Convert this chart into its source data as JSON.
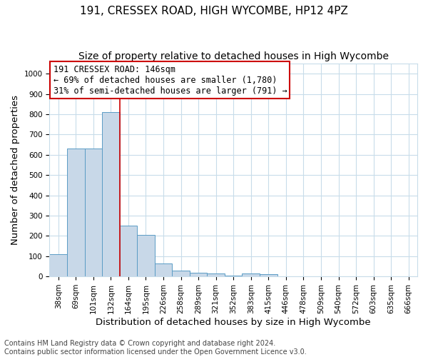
{
  "title": "191, CRESSEX ROAD, HIGH WYCOMBE, HP12 4PZ",
  "subtitle": "Size of property relative to detached houses in High Wycombe",
  "xlabel": "Distribution of detached houses by size in High Wycombe",
  "ylabel": "Number of detached properties",
  "footer_line1": "Contains HM Land Registry data © Crown copyright and database right 2024.",
  "footer_line2": "Contains public sector information licensed under the Open Government Licence v3.0.",
  "bin_labels": [
    "38sqm",
    "69sqm",
    "101sqm",
    "132sqm",
    "164sqm",
    "195sqm",
    "226sqm",
    "258sqm",
    "289sqm",
    "321sqm",
    "352sqm",
    "383sqm",
    "415sqm",
    "446sqm",
    "478sqm",
    "509sqm",
    "540sqm",
    "572sqm",
    "603sqm",
    "635sqm",
    "666sqm"
  ],
  "bar_values": [
    110,
    630,
    630,
    810,
    250,
    205,
    63,
    28,
    18,
    13,
    5,
    13,
    10,
    0,
    0,
    0,
    0,
    0,
    0,
    0,
    0
  ],
  "bar_color": "#c8d8e8",
  "bar_edge_color": "#5a9cc5",
  "ylim": [
    0,
    1050
  ],
  "yticks": [
    0,
    100,
    200,
    300,
    400,
    500,
    600,
    700,
    800,
    900,
    1000
  ],
  "red_line_x": 3.5,
  "annotation_line1": "191 CRESSEX ROAD: 146sqm",
  "annotation_line2": "← 69% of detached houses are smaller (1,780)",
  "annotation_line3": "31% of semi-detached houses are larger (791) →",
  "annotation_box_color": "#ffffff",
  "annotation_box_edge_color": "#cc0000",
  "grid_color": "#c8dcea",
  "background_color": "#ffffff",
  "title_fontsize": 11,
  "subtitle_fontsize": 10,
  "axis_label_fontsize": 9.5,
  "tick_fontsize": 7.5,
  "annotation_fontsize": 8.5,
  "footer_fontsize": 7
}
